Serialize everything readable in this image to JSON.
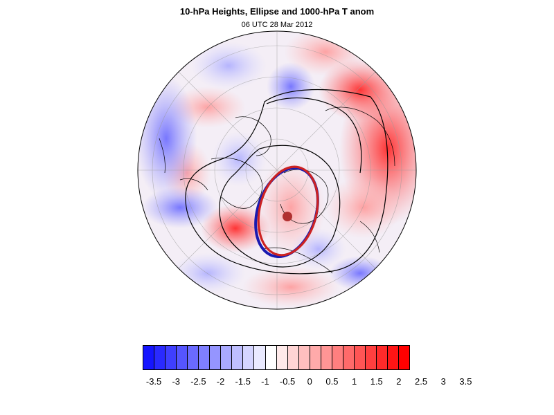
{
  "title": "10-hPa Heights, Ellipse and 1000-hPa T anom",
  "subtitle": "06 UTC 28 Mar 2012",
  "colorbar": {
    "colors": [
      "#1515ff",
      "#2a2aff",
      "#3f3fff",
      "#5555ff",
      "#6a6aff",
      "#7f7fff",
      "#9595ff",
      "#aaaaff",
      "#bfbfff",
      "#d5d5ff",
      "#eaeaff",
      "#ffffff",
      "#ffeaea",
      "#ffd5d5",
      "#ffbfbf",
      "#ffaaaa",
      "#ff9595",
      "#ff7f7f",
      "#ff6a6a",
      "#ff5555",
      "#ff3f3f",
      "#ff2a2a",
      "#ff1515",
      "#ff0000"
    ],
    "labels": [
      "-3.5",
      "-3",
      "-2.5",
      "-2",
      "-1.5",
      "-1",
      "-0.5",
      "0",
      "0.5",
      "1",
      "1.5",
      "2",
      "2.5",
      "3",
      "3.5"
    ]
  },
  "map": {
    "projection": "polar stereographic, Northern Hemisphere",
    "ellipse_colors": [
      "#1a1ab0",
      "#cc2222"
    ],
    "ellipse_center_color": "#b03030",
    "contour_color": "#000000"
  }
}
